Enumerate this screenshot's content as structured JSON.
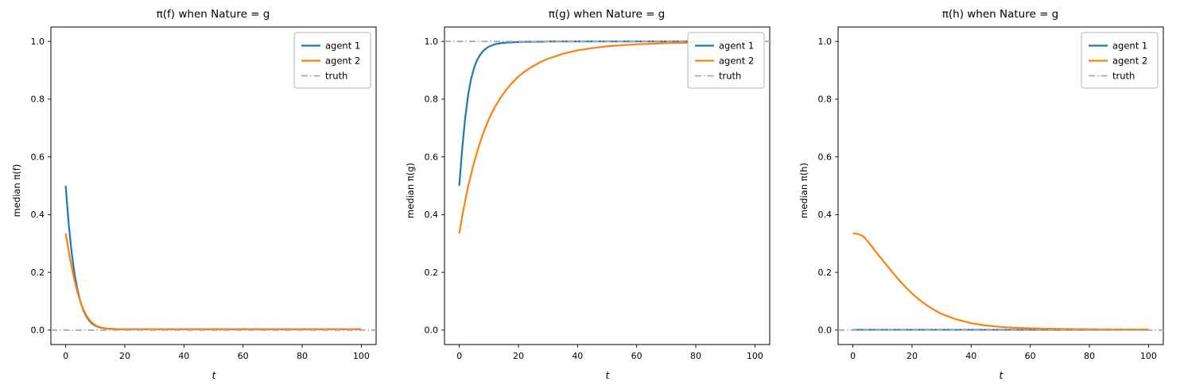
{
  "figure": {
    "background": "#ffffff",
    "text_color": "#000000",
    "spine_color": "#000000",
    "legend_border_color": "#b3b3b3"
  },
  "chart_data": [
    {
      "type": "line",
      "title": "π(f) when Nature = g",
      "xlabel": "t",
      "ylabel": "median π(f)",
      "xlim": [
        -5,
        105
      ],
      "ylim": [
        -0.05,
        1.05
      ],
      "xticks": [
        0,
        20,
        40,
        60,
        80,
        100
      ],
      "yticks": [
        0.0,
        0.2,
        0.4,
        0.6,
        0.8,
        1.0
      ],
      "grid": false,
      "legend_position": "upper right",
      "truth_value": 0.0,
      "series": [
        {
          "name": "agent 1",
          "color": "#1f77b4",
          "style": "solid",
          "width": 2.2,
          "x": [
            0,
            1,
            2,
            3,
            4,
            5,
            6,
            7,
            8,
            9,
            10,
            11,
            12,
            14,
            16,
            18,
            20,
            25,
            30,
            40,
            50,
            60,
            70,
            80,
            90,
            100
          ],
          "y": [
            0.5,
            0.37,
            0.27,
            0.195,
            0.14,
            0.098,
            0.068,
            0.047,
            0.032,
            0.022,
            0.015,
            0.011,
            0.008,
            0.005,
            0.004,
            0.003,
            0.003,
            0.003,
            0.003,
            0.003,
            0.003,
            0.003,
            0.003,
            0.003,
            0.003,
            0.003
          ]
        },
        {
          "name": "agent 2",
          "color": "#ff7f0e",
          "style": "solid",
          "width": 2.2,
          "x": [
            0,
            1,
            2,
            3,
            4,
            5,
            6,
            7,
            8,
            9,
            10,
            11,
            12,
            14,
            16,
            18,
            20,
            25,
            30,
            40,
            50,
            60,
            70,
            80,
            90,
            100
          ],
          "y": [
            0.335,
            0.275,
            0.22,
            0.172,
            0.131,
            0.098,
            0.071,
            0.051,
            0.036,
            0.025,
            0.017,
            0.012,
            0.009,
            0.005,
            0.004,
            0.003,
            0.003,
            0.003,
            0.003,
            0.003,
            0.003,
            0.003,
            0.003,
            0.003,
            0.003,
            0.003
          ]
        },
        {
          "name": "truth",
          "color": "#a9a9a9",
          "style": "dashdot",
          "width": 1.8,
          "x": [
            -5,
            105
          ],
          "y": [
            0.0,
            0.0
          ]
        }
      ]
    },
    {
      "type": "line",
      "title": "π(g) when Nature = g",
      "xlabel": "t",
      "ylabel": "median π(g)",
      "xlim": [
        -5,
        105
      ],
      "ylim": [
        -0.05,
        1.05
      ],
      "xticks": [
        0,
        20,
        40,
        60,
        80,
        100
      ],
      "yticks": [
        0.0,
        0.2,
        0.4,
        0.6,
        0.8,
        1.0
      ],
      "grid": false,
      "legend_position": "upper right",
      "truth_value": 1.0,
      "series": [
        {
          "name": "agent 1",
          "color": "#1f77b4",
          "style": "solid",
          "width": 2.2,
          "x": [
            0,
            1,
            2,
            3,
            4,
            5,
            6,
            7,
            8,
            9,
            10,
            11,
            12,
            14,
            16,
            18,
            20,
            22,
            25,
            28,
            30,
            35,
            40,
            45,
            50,
            55,
            60,
            70,
            80,
            90,
            100
          ],
          "y": [
            0.5,
            0.63,
            0.735,
            0.815,
            0.87,
            0.908,
            0.935,
            0.953,
            0.966,
            0.975,
            0.982,
            0.986,
            0.99,
            0.994,
            0.996,
            0.997,
            0.998,
            0.999,
            0.999,
            0.999,
            1.0,
            1.0,
            1.0,
            1.0,
            1.0,
            1.0,
            1.0,
            1.0,
            1.0,
            1.0,
            1.0
          ]
        },
        {
          "name": "agent 2",
          "color": "#ff7f0e",
          "style": "solid",
          "width": 2.2,
          "x": [
            0,
            1,
            2,
            3,
            4,
            5,
            6,
            7,
            8,
            9,
            10,
            11,
            12,
            14,
            16,
            18,
            20,
            22,
            25,
            28,
            30,
            35,
            40,
            45,
            50,
            55,
            60,
            70,
            80,
            90,
            100
          ],
          "y": [
            0.335,
            0.395,
            0.448,
            0.497,
            0.54,
            0.58,
            0.616,
            0.649,
            0.679,
            0.706,
            0.73,
            0.752,
            0.772,
            0.806,
            0.834,
            0.858,
            0.878,
            0.895,
            0.915,
            0.931,
            0.94,
            0.957,
            0.969,
            0.977,
            0.983,
            0.987,
            0.99,
            0.994,
            0.996,
            0.998,
            0.999
          ]
        },
        {
          "name": "truth",
          "color": "#a9a9a9",
          "style": "dashdot",
          "width": 1.8,
          "x": [
            -5,
            105
          ],
          "y": [
            1.0,
            1.0
          ]
        }
      ]
    },
    {
      "type": "line",
      "title": "π(h) when Nature = g",
      "xlabel": "t",
      "ylabel": "median π(h)",
      "xlim": [
        -5,
        105
      ],
      "ylim": [
        -0.05,
        1.05
      ],
      "xticks": [
        0,
        20,
        40,
        60,
        80,
        100
      ],
      "yticks": [
        0.0,
        0.2,
        0.4,
        0.6,
        0.8,
        1.0
      ],
      "grid": false,
      "legend_position": "upper right",
      "truth_value": 0.0,
      "series": [
        {
          "name": "agent 1",
          "color": "#1f77b4",
          "style": "solid",
          "width": 2.2,
          "x": [
            0,
            10,
            20,
            30,
            40,
            50,
            60,
            70,
            80,
            90,
            100
          ],
          "y": [
            0.001,
            0.001,
            0.001,
            0.001,
            0.001,
            0.001,
            0.001,
            0.001,
            0.001,
            0.001,
            0.001
          ]
        },
        {
          "name": "agent 2",
          "color": "#ff7f0e",
          "style": "solid",
          "width": 2.2,
          "x": [
            0,
            1,
            2,
            3,
            4,
            5,
            6,
            8,
            10,
            12,
            14,
            16,
            18,
            20,
            22,
            25,
            28,
            30,
            35,
            40,
            45,
            50,
            55,
            60,
            70,
            80,
            90,
            100
          ],
          "y": [
            0.335,
            0.334,
            0.332,
            0.328,
            0.32,
            0.308,
            0.295,
            0.268,
            0.243,
            0.218,
            0.193,
            0.169,
            0.147,
            0.127,
            0.109,
            0.086,
            0.067,
            0.056,
            0.037,
            0.024,
            0.016,
            0.011,
            0.008,
            0.006,
            0.004,
            0.003,
            0.002,
            0.002
          ]
        },
        {
          "name": "truth",
          "color": "#a9a9a9",
          "style": "dashdot",
          "width": 1.8,
          "x": [
            -5,
            105
          ],
          "y": [
            0.0,
            0.0
          ]
        }
      ]
    }
  ],
  "legend": {
    "labels": [
      "agent 1",
      "agent 2",
      "truth"
    ]
  }
}
